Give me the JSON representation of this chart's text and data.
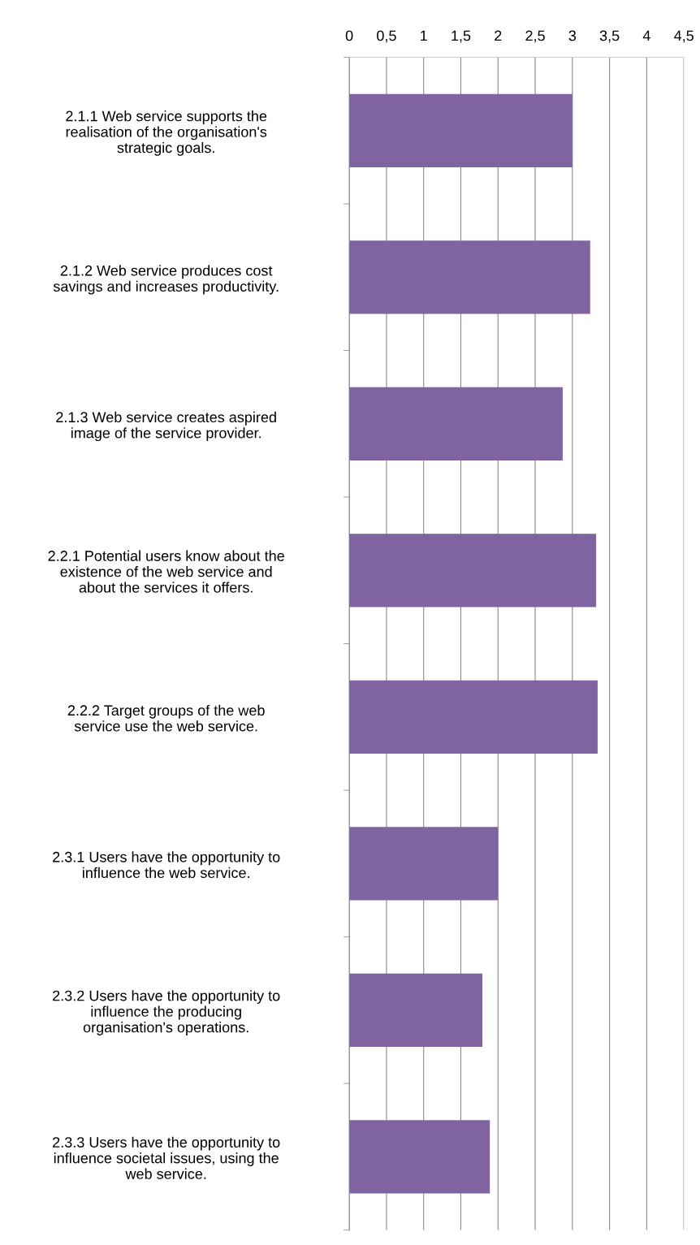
{
  "chart_data": {
    "type": "bar",
    "orientation": "horizontal",
    "categories": [
      "2.1.1 Web service supports the\nrealisation of the organisation's\nstrategic goals.",
      "2.1.2 Web service produces cost\nsavings and increases productivity.",
      "2.1.3 Web service creates aspired\nimage of the service provider.",
      "2.2.1 Potential users know about the\nexistence of the web service and\nabout the services it offers.",
      "2.2.2 Target groups of the web\nservice use the web service.",
      "2.3.1 Users have the opportunity to\ninfluence the web service.",
      "2.3.2 Users have the opportunity to\ninfluence the producing\norganisation's operations.",
      "2.3.3 Users have the opportunity to\ninfluence societal issues, using the\nweb service."
    ],
    "values": [
      3.0,
      3.24,
      2.87,
      3.32,
      3.34,
      2.0,
      1.79,
      1.89
    ],
    "color": "#8064a2",
    "xlim": [
      0,
      4.5
    ],
    "xticks": [
      {
        "value": 0,
        "label": "0"
      },
      {
        "value": 0.5,
        "label": "0,5"
      },
      {
        "value": 1,
        "label": "1"
      },
      {
        "value": 1.5,
        "label": "1,5"
      },
      {
        "value": 2,
        "label": "2"
      },
      {
        "value": 2.5,
        "label": "2,5"
      },
      {
        "value": 3,
        "label": "3"
      },
      {
        "value": 3.5,
        "label": "3,5"
      },
      {
        "value": 4,
        "label": "4"
      },
      {
        "value": 4.5,
        "label": "4,5"
      }
    ],
    "grid": "x",
    "legend": false
  }
}
